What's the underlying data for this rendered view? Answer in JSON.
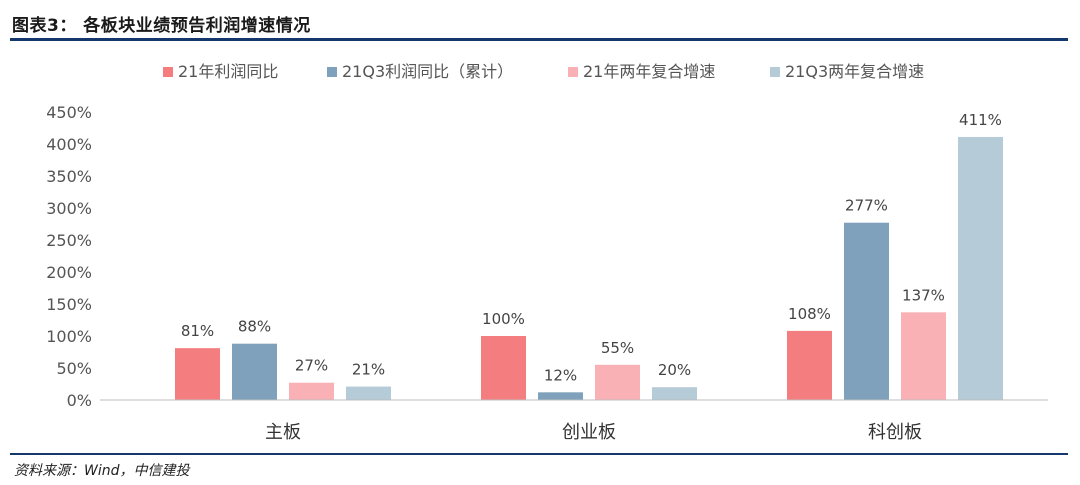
{
  "header": {
    "title": "图表3：  各板块业绩预告利润增速情况"
  },
  "footer": {
    "source": "资料来源：Wind，中信建投"
  },
  "chart_data": {
    "type": "bar",
    "title": "",
    "xlabel": "",
    "ylabel": "",
    "categories": [
      "主板",
      "创业板",
      "科创板"
    ],
    "series": [
      {
        "name": "21年利润同比",
        "values": [
          81,
          100,
          108
        ],
        "labels": [
          "81%",
          "100%",
          "108%"
        ],
        "color": "#f47d80"
      },
      {
        "name": "21Q3利润同比（累计）",
        "values": [
          88,
          12,
          277
        ],
        "labels": [
          "88%",
          "12%",
          "277%"
        ],
        "color": "#7fa1bb"
      },
      {
        "name": "21年两年复合增速",
        "values": [
          27,
          55,
          137
        ],
        "labels": [
          "27%",
          "55%",
          "137%"
        ],
        "color": "#f9b1b5"
      },
      {
        "name": "21Q3两年复合增速",
        "values": [
          21,
          20,
          411
        ],
        "labels": [
          "21%",
          "20%",
          "411%"
        ],
        "color": "#b5cbd8"
      }
    ],
    "ylim": [
      0,
      450
    ],
    "yticks": [
      0,
      50,
      100,
      150,
      200,
      250,
      300,
      350,
      400,
      450
    ],
    "ytick_labels": [
      "0%",
      "50%",
      "100%",
      "150%",
      "200%",
      "250%",
      "300%",
      "350%",
      "400%",
      "450%"
    ],
    "legend": "top",
    "grid": false
  }
}
